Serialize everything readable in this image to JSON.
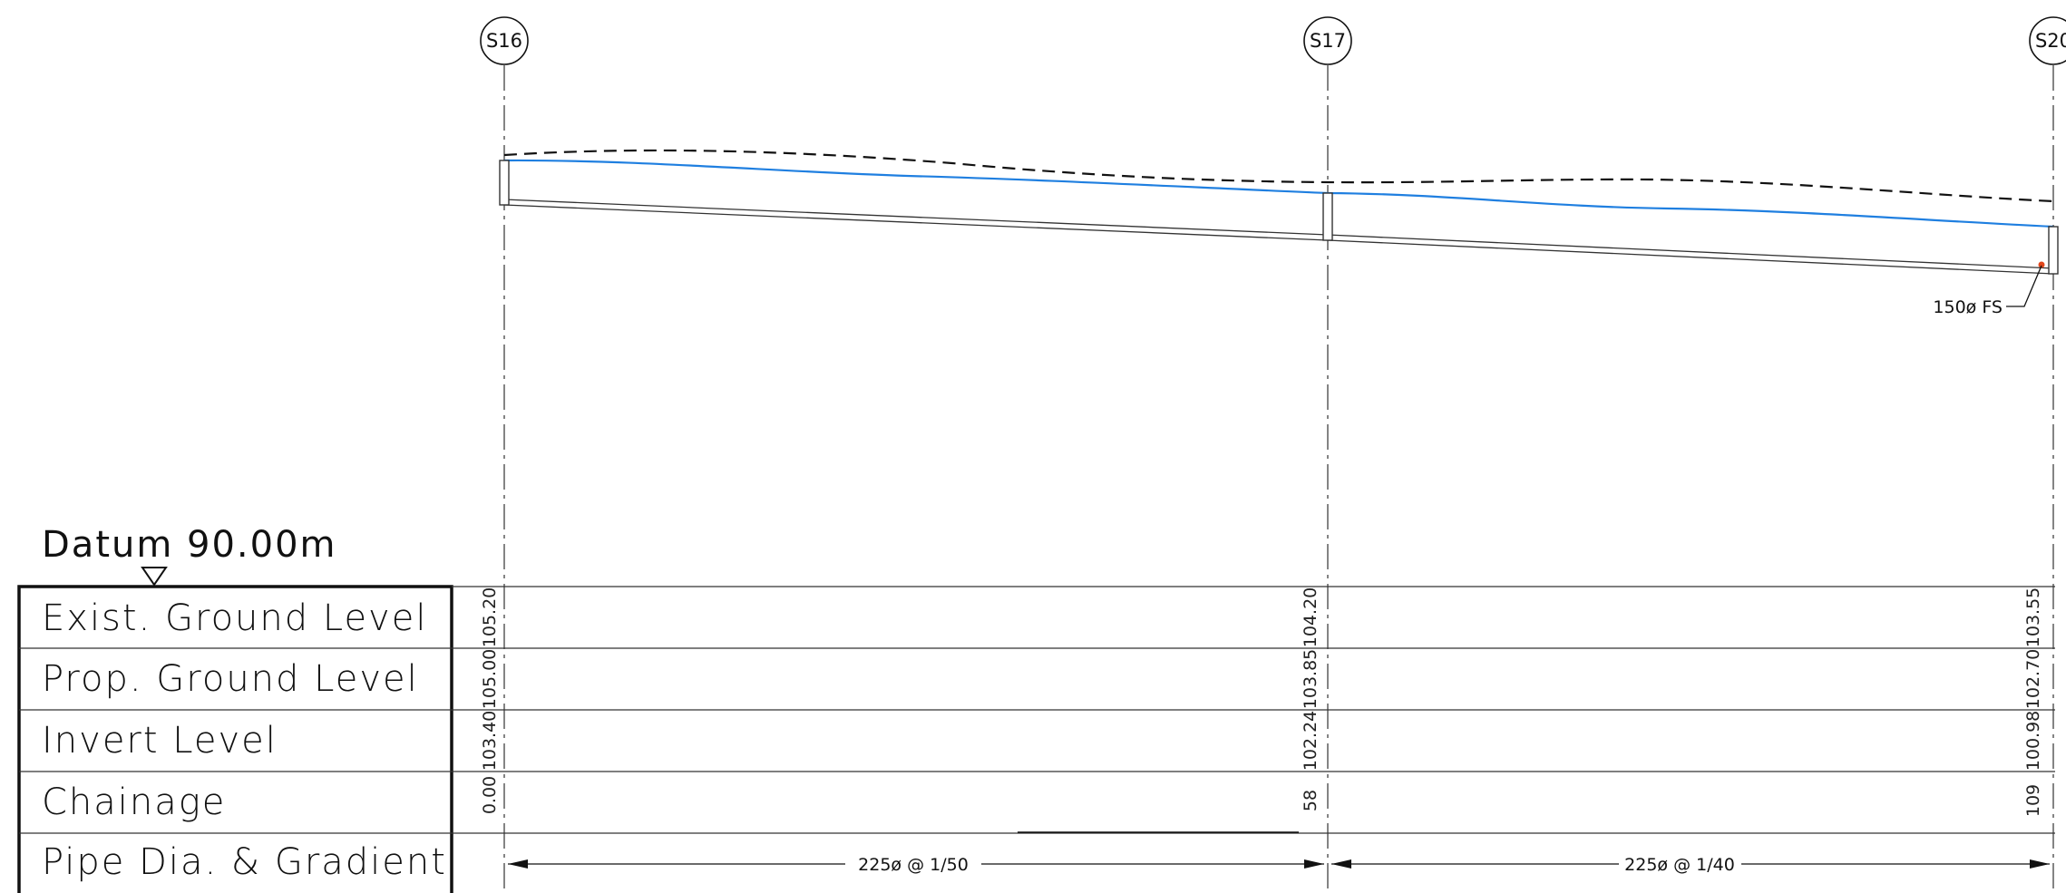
{
  "datum": {
    "label": "Datum 90.00m"
  },
  "rows": [
    {
      "label": "Exist. Ground Level"
    },
    {
      "label": "Prop. Ground Level"
    },
    {
      "label": "Invert Level"
    },
    {
      "label": "Chainage"
    },
    {
      "label": "Pipe Dia. & Gradient"
    }
  ],
  "nodes": [
    {
      "id": "S16",
      "exist_gl": "105.20",
      "prop_gl": "105.00",
      "invert": "103.40",
      "chainage": "0.00",
      "chainage_value": 0
    },
    {
      "id": "S17",
      "exist_gl": "104.20",
      "prop_gl": "103.85",
      "invert": "102.24",
      "chainage": "58",
      "chainage_value": 58
    },
    {
      "id": "S20",
      "exist_gl": "103.55",
      "prop_gl": "102.70",
      "invert": "100.98",
      "chainage": "109",
      "chainage_value": 109
    }
  ],
  "segments": [
    {
      "label": "225ø @ 1/50"
    },
    {
      "label": "225ø @ 1/40"
    }
  ],
  "annotation": {
    "label": "150ø FS"
  },
  "colors": {
    "line": "#222222",
    "proposed_ground": "#1f7fe0",
    "marker": "#e0461a",
    "dash": "#111111"
  }
}
